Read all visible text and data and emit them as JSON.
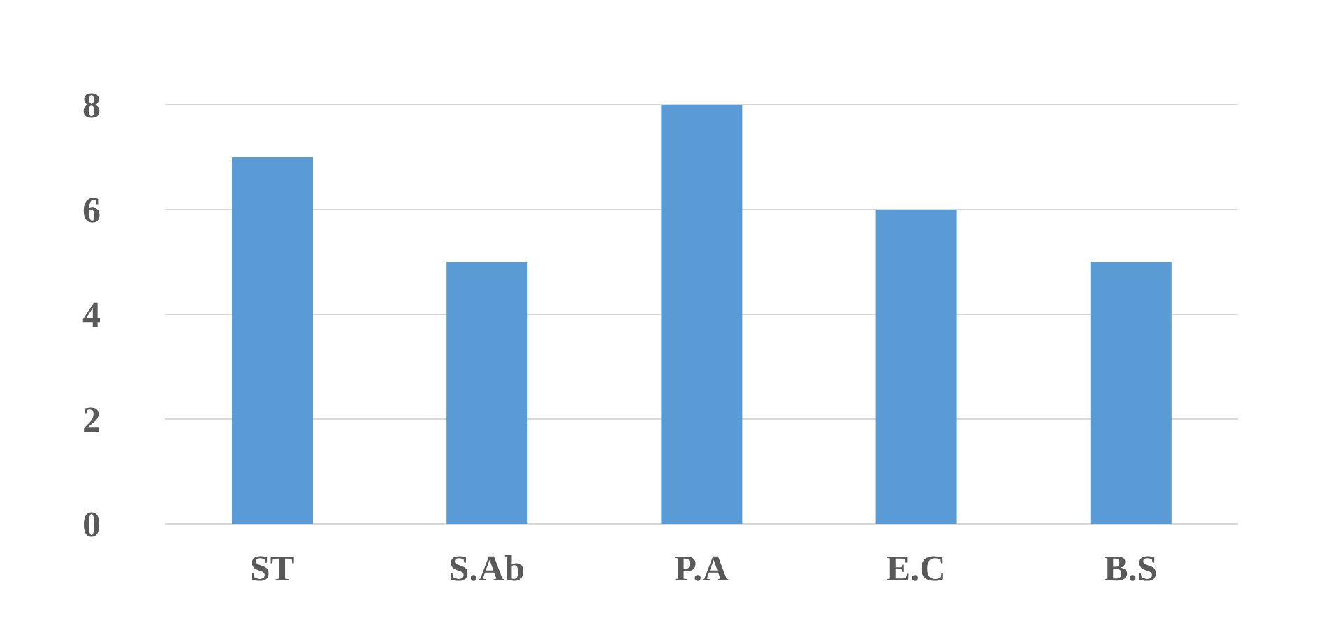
{
  "chart_data": {
    "type": "bar",
    "categories": [
      "ST",
      "S.Ab",
      "P.A",
      "E.C",
      "B.S"
    ],
    "values": [
      7,
      5,
      8,
      6,
      5
    ],
    "color": "#5b9bd5",
    "ylim": [
      0,
      8
    ],
    "yticks": [
      0,
      2,
      4,
      6,
      8
    ],
    "grid": "y"
  }
}
